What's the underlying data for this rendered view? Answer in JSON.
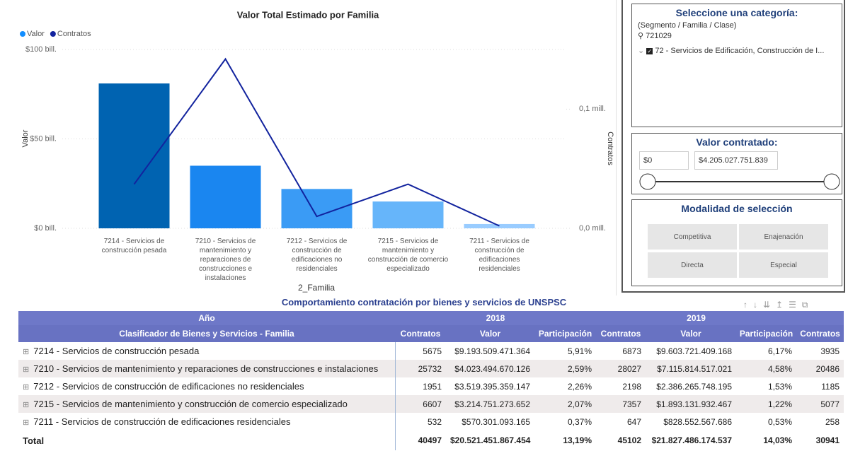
{
  "chart_data": {
    "type": "bar_line",
    "title": "Valor Total Estimado por Familia",
    "x_label": "2_Familia",
    "y_label": "Valor",
    "y2_label": "Contratos",
    "categories": [
      "7214 - Servicios de construcción pesada",
      "7210 - Servicios de mantenimiento y reparaciones de construcciones e instalaciones",
      "7212 - Servicios de construcción de edificaciones no residenciales",
      "7215 - Servicios de mantenimiento y construcción de comercio especializado",
      "7211 - Servicios de construcción de edificaciones residenciales"
    ],
    "series": [
      {
        "name": "Valor",
        "color": "#118DFF",
        "bar_colors": [
          "#0063B1",
          "#1A86F0",
          "#3A9BF5",
          "#66B5FA",
          "#99CCFF"
        ],
        "values": [
          81,
          35,
          22,
          15,
          2.4
        ]
      },
      {
        "name": "Contratos",
        "color": "#12239E",
        "axis": "y2",
        "values": [
          0.037,
          0.142,
          0.01,
          0.037,
          0.002
        ]
      }
    ],
    "ylim": [
      0,
      100
    ],
    "yticks": [
      {
        "value": 0,
        "label": "$0 bill."
      },
      {
        "value": 50,
        "label": "$50 bill."
      },
      {
        "value": 100,
        "label": "$100 bill."
      }
    ],
    "y2lim": [
      0,
      0.15
    ],
    "y2ticks": [
      {
        "value": 0,
        "label": "0,0 mill."
      },
      {
        "value": 0.1,
        "label": "0,1 mill."
      }
    ],
    "grid": true,
    "legend": "top-left"
  },
  "slicers": {
    "category": {
      "title": "Seleccione una categoría:",
      "subtitle": "(Segmento / Familia / Clase)",
      "search": "721029",
      "item": "72 - Servicios de Edificación, Construcción de I..."
    },
    "value": {
      "title": "Valor contratado:",
      "min": "$0",
      "max": "$4.205.027.751.839"
    },
    "mode": {
      "title": "Modalidad de selección",
      "options": [
        "Competitiva",
        "Enajenación",
        "Directa",
        "Especial"
      ]
    }
  },
  "table": {
    "title": "Comportamiento contratación por bienes y servicios de UNSPSC",
    "header_top": [
      "Año",
      "2018",
      "2019"
    ],
    "columns": [
      "Clasificador de Bienes y Servicios - Familia",
      "Contratos",
      "Valor",
      "Participación",
      "Contratos",
      "Valor",
      "Participación",
      "Contratos"
    ],
    "rows": [
      [
        "7214 - Servicios de construcción pesada",
        "5675",
        "$9.193.509.471.364",
        "5,91%",
        "6873",
        "$9.603.721.409.168",
        "6,17%",
        "3935"
      ],
      [
        "7210 - Servicios de mantenimiento y reparaciones de construcciones e instalaciones",
        "25732",
        "$4.023.494.670.126",
        "2,59%",
        "28027",
        "$7.115.814.517.021",
        "4,58%",
        "20486"
      ],
      [
        "7212 - Servicios de construcción de edificaciones no residenciales",
        "1951",
        "$3.519.395.359.147",
        "2,26%",
        "2198",
        "$2.386.265.748.195",
        "1,53%",
        "1185"
      ],
      [
        "7215 - Servicios de mantenimiento y construcción de comercio especializado",
        "6607",
        "$3.214.751.273.652",
        "2,07%",
        "7357",
        "$1.893.131.932.467",
        "1,22%",
        "5077"
      ],
      [
        "7211 - Servicios de construcción de edificaciones residenciales",
        "532",
        "$570.301.093.165",
        "0,37%",
        "647",
        "$828.552.567.686",
        "0,53%",
        "258"
      ]
    ],
    "total": [
      "Total",
      "40497",
      "$20.521.451.867.454",
      "13,19%",
      "45102",
      "$21.827.486.174.537",
      "14,03%",
      "30941"
    ]
  }
}
